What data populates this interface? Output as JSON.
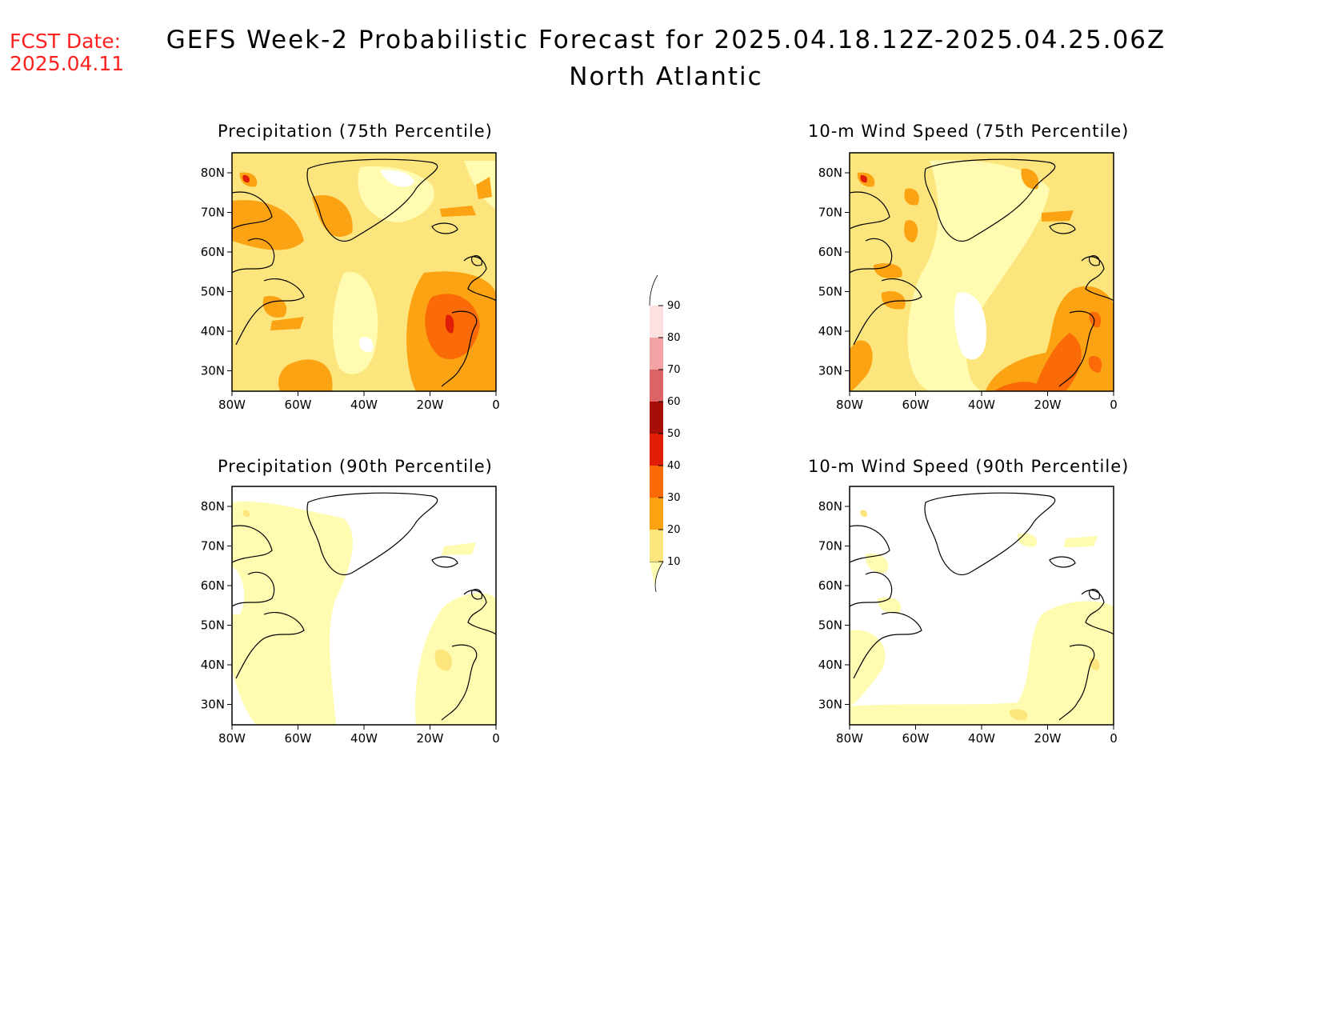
{
  "header": {
    "fcst_label": "FCST Date:",
    "fcst_date": "2025.04.11",
    "title": "GEFS Week-2 Probabilistic Forecast for 2025.04.18.12Z-2025.04.25.06Z",
    "region": "North Atlantic"
  },
  "panels": [
    {
      "id": "precip75",
      "title": "Precipitation (75th Percentile)"
    },
    {
      "id": "wind75",
      "title": "10-m Wind Speed (75th Percentile)"
    },
    {
      "id": "precip90",
      "title": "Precipitation (90th Percentile)"
    },
    {
      "id": "wind90",
      "title": "10-m Wind Speed (90th Percentile)"
    }
  ],
  "map_axes": {
    "lon_labels": [
      "80W",
      "60W",
      "40W",
      "20W",
      "0"
    ],
    "lat_labels": [
      "80N",
      "70N",
      "60N",
      "50N",
      "40N",
      "30N"
    ]
  },
  "colorbar": {
    "levels": [
      "10",
      "20",
      "30",
      "40",
      "50",
      "60",
      "70",
      "80",
      "90"
    ],
    "colors": [
      "#fffbb0",
      "#fde57e",
      "#fba313",
      "#fa6a07",
      "#e01e07",
      "#a50f07",
      "#dd6464",
      "#f3a3a3",
      "#fde0e0",
      "#ffffff"
    ]
  }
}
